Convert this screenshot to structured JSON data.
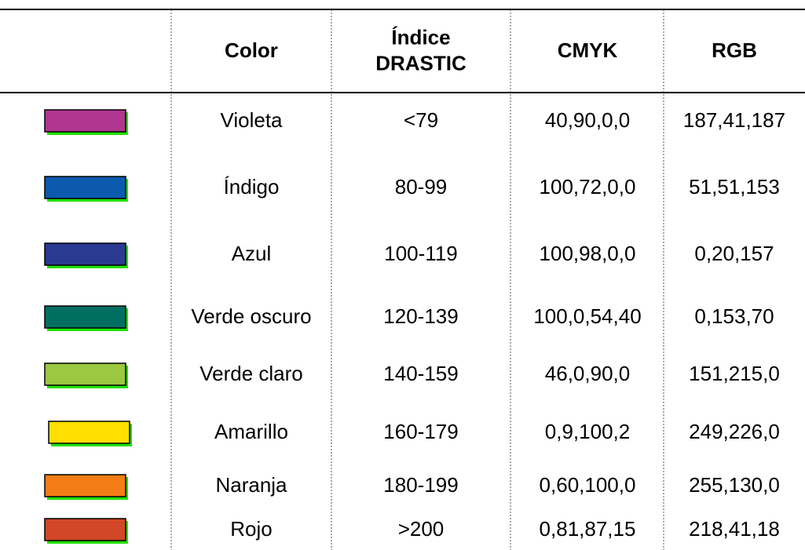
{
  "table": {
    "header": [
      "Color",
      [
        "Índice",
        "DRASTIC"
      ],
      "CMYK",
      "RGB"
    ],
    "rows": [
      {
        "swatch": "#b0368f",
        "cells": [
          "Violeta",
          "<79",
          "40,90,0,0",
          "187,41,187"
        ]
      },
      {
        "swatch": "#0b5aad",
        "cells": [
          "Índigo",
          "80-99",
          "100,72,0,0",
          "51,51,153"
        ]
      },
      {
        "swatch": "#2b3990",
        "cells": [
          "Azul",
          "100-119",
          "100,98,0,0",
          "0,20,157"
        ]
      },
      {
        "swatch": "#006f62",
        "cells": [
          "Verde oscuro",
          "120-139",
          "100,0,54,40",
          "0,153,70"
        ]
      },
      {
        "swatch": "#9bc741",
        "cells": [
          "Verde claro",
          "140-159",
          "46,0,90,0",
          "151,215,0"
        ]
      },
      {
        "swatch": "#ffde00",
        "cells": [
          "Amarillo",
          "160-179",
          "0,9,100,2",
          "249,226,0"
        ]
      },
      {
        "swatch": "#f47d15",
        "cells": [
          "Naranja",
          "180-199",
          "0,60,100,0",
          "255,130,0"
        ]
      },
      {
        "swatch": "#d14727",
        "cells": [
          "Rojo",
          ">200",
          "0,81,87,15",
          "218,41,18"
        ]
      }
    ]
  }
}
